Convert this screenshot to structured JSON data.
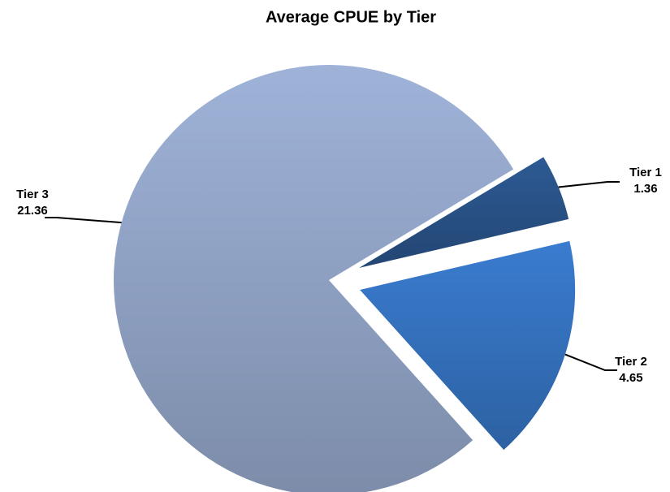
{
  "chart_data": {
    "type": "pie",
    "title": "Average CPUE by Tier",
    "categories": [
      "Tier 1",
      "Tier 2",
      "Tier 3"
    ],
    "values": [
      1.36,
      4.65,
      21.36
    ],
    "colors": [
      "#2d5a94",
      "#3a7cd0",
      "#9fb3d9"
    ]
  }
}
